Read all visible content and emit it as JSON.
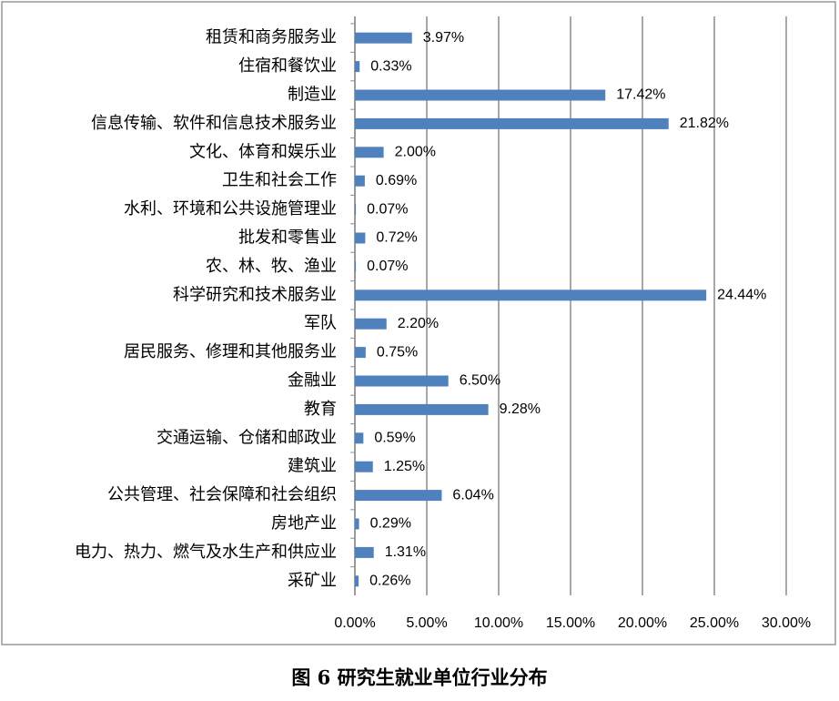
{
  "chart_data": {
    "type": "bar",
    "orientation": "horizontal",
    "title": "图 6  研究生就业单位行业分布",
    "categories": [
      "租赁和商务服务业",
      "住宿和餐饮业",
      "制造业",
      "信息传输、软件和信息技术服务业",
      "文化、体育和娱乐业",
      "卫生和社会工作",
      "水利、环境和公共设施管理业",
      "批发和零售业",
      "农、林、牧、渔业",
      "科学研究和技术服务业",
      "军队",
      "居民服务、修理和其他服务业",
      "金融业",
      "教育",
      "交通运输、仓储和邮政业",
      "建筑业",
      "公共管理、社会保障和社会组织",
      "房地产业",
      "电力、热力、燃气及水生产和供应业",
      "采矿业"
    ],
    "values": [
      3.97,
      0.33,
      17.42,
      21.82,
      2.0,
      0.69,
      0.07,
      0.72,
      0.07,
      24.44,
      2.2,
      0.75,
      6.5,
      9.28,
      0.59,
      1.25,
      6.04,
      0.29,
      1.31,
      0.26
    ],
    "value_labels": [
      "3.97%",
      "0.33%",
      "17.42%",
      "21.82%",
      "2.00%",
      "0.69%",
      "0.07%",
      "0.72%",
      "0.07%",
      "24.44%",
      "2.20%",
      "0.75%",
      "6.50%",
      "9.28%",
      "0.59%",
      "1.25%",
      "6.04%",
      "0.29%",
      "1.31%",
      "0.26%"
    ],
    "color": "#4f81bd",
    "xlim": [
      0,
      30
    ],
    "xticks": [
      {
        "value": 0,
        "label": "0.00%"
      },
      {
        "value": 5,
        "label": "5.00%"
      },
      {
        "value": 10,
        "label": "10.00%"
      },
      {
        "value": 15,
        "label": "15.00%"
      },
      {
        "value": 20,
        "label": "20.00%"
      },
      {
        "value": 25,
        "label": "25.00%"
      },
      {
        "value": 30,
        "label": "30.00%"
      }
    ],
    "grid": true
  }
}
